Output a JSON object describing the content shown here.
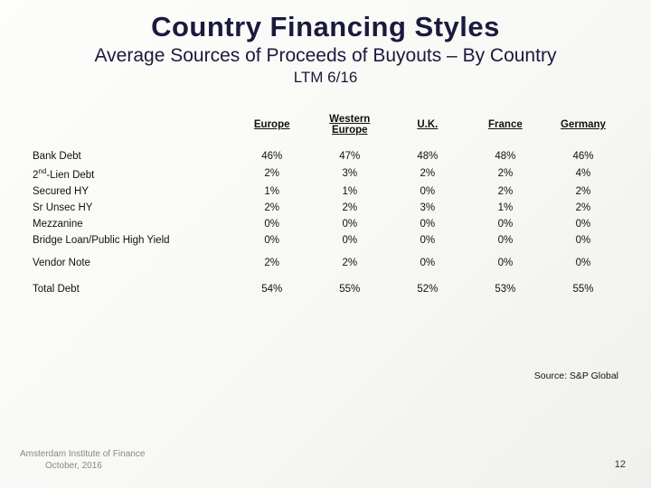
{
  "title": "Country Financing Styles",
  "subtitle": "Average Sources of Proceeds of Buyouts – By Country",
  "period": "LTM 6/16",
  "columns": [
    "Europe",
    "Western Europe",
    "U.K.",
    "France",
    "Germany"
  ],
  "rows": [
    {
      "label": "Bank Debt",
      "values": [
        "46%",
        "47%",
        "48%",
        "48%",
        "46%"
      ]
    },
    {
      "label_html": "2<sup>nd</sup>-Lien Debt",
      "values": [
        "2%",
        "3%",
        "2%",
        "2%",
        "4%"
      ]
    },
    {
      "label": "Secured HY",
      "values": [
        "1%",
        "1%",
        "0%",
        "2%",
        "2%"
      ]
    },
    {
      "label": "Sr Unsec HY",
      "values": [
        "2%",
        "2%",
        "3%",
        "1%",
        "2%"
      ]
    },
    {
      "label": "Mezzanine",
      "values": [
        "0%",
        "0%",
        "0%",
        "0%",
        "0%"
      ]
    },
    {
      "label": "Bridge Loan/Public High Yield",
      "values": [
        "0%",
        "0%",
        "0%",
        "0%",
        "0%"
      ]
    }
  ],
  "gap_row": {
    "label": "Vendor Note",
    "values": [
      "2%",
      "2%",
      "0%",
      "0%",
      "0%"
    ]
  },
  "total_row": {
    "label": "Total Debt",
    "values": [
      "54%",
      "55%",
      "52%",
      "53%",
      "55%"
    ]
  },
  "source": "Source: S&P Global",
  "footer_institution": "Amsterdam Institute of Finance",
  "footer_date": "October, 2016",
  "page_number": "12",
  "colors": {
    "heading": "#1a1a3d",
    "text": "#111111",
    "footer_muted": "#888888",
    "bg_top": "#fdfdfb",
    "bg_bottom": "#f0f0ec"
  }
}
